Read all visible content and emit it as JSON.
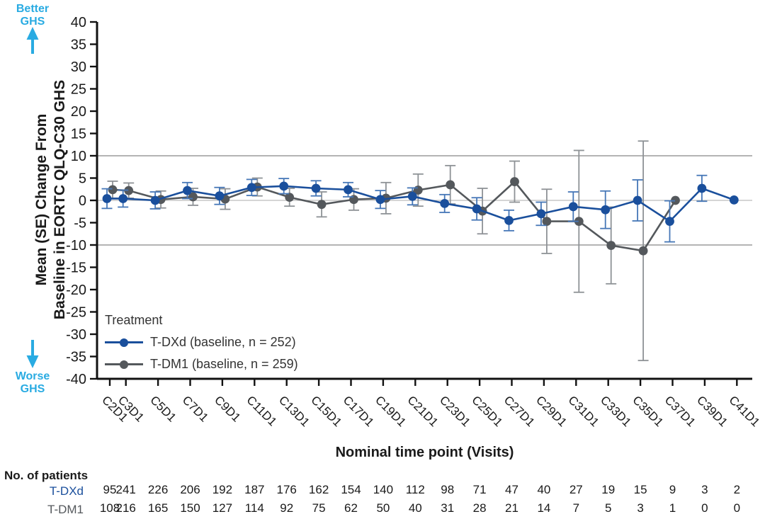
{
  "chart_data": {
    "type": "line",
    "title": "",
    "xlabel": "Nominal time point (Visits)",
    "ylabel": "Mean (SE) Change From Baseline in EORTC QLQ-C30 GHS",
    "ylabel_lines": [
      "Mean (SE) Change From",
      "Baseline in EORTC QLQ-C30 GHS"
    ],
    "ylim": [
      -40,
      40
    ],
    "ytick_step": 5,
    "reference_lines": [
      10,
      0,
      -10
    ],
    "grid": "horizontal reference lines at +10, 0, -10 only",
    "legend": {
      "title": "Treatment",
      "position": "inside lower-left"
    },
    "categories": [
      "C2D1",
      "C3D1",
      "C5D1",
      "C7D1",
      "C9D1",
      "C11D1",
      "C13D1",
      "C15D1",
      "C17D1",
      "C19D1",
      "C21D1",
      "C23D1",
      "C25D1",
      "C27D1",
      "C29D1",
      "C31D1",
      "C33D1",
      "C35D1",
      "C37D1",
      "C39D1",
      "C41D1"
    ],
    "cycles": [
      2,
      3,
      5,
      7,
      9,
      11,
      13,
      15,
      17,
      19,
      21,
      23,
      25,
      27,
      29,
      31,
      33,
      35,
      37,
      39,
      41
    ],
    "annotations": {
      "better_lines": [
        "Better",
        "GHS"
      ],
      "worse_lines": [
        "Worse",
        "GHS"
      ],
      "color": "#29ABE2"
    },
    "series": [
      {
        "name": "T-DXd",
        "label": "T-DXd (baseline, n = 252)",
        "color": "#1A4F9C",
        "error_color": "#4677B7",
        "means": [
          0.4,
          0.4,
          0.0,
          2.2,
          1.0,
          2.9,
          3.2,
          2.7,
          2.4,
          0.2,
          0.9,
          -0.7,
          -1.9,
          -4.5,
          -3.0,
          -1.4,
          -2.1,
          0.0,
          -4.7,
          2.7,
          0.1
        ],
        "se": [
          2.2,
          1.9,
          1.9,
          1.8,
          1.9,
          1.8,
          1.7,
          1.7,
          1.6,
          2.0,
          1.9,
          2.0,
          2.5,
          2.3,
          2.6,
          3.3,
          4.2,
          4.6,
          4.6,
          2.9,
          null
        ]
      },
      {
        "name": "T-DM1",
        "label": "T-DM1 (baseline, n = 259)",
        "color": "#54585C",
        "error_color": "#8E9296",
        "means": [
          2.4,
          2.2,
          0.2,
          0.8,
          0.3,
          3.0,
          0.7,
          -0.9,
          0.2,
          0.5,
          2.3,
          3.5,
          -2.4,
          4.2,
          -4.7,
          -4.7,
          -10.1,
          -11.3,
          0.0,
          null,
          null
        ],
        "se": [
          1.9,
          1.7,
          1.9,
          1.9,
          2.3,
          2.0,
          2.0,
          2.8,
          2.4,
          3.5,
          3.6,
          4.3,
          5.1,
          4.6,
          7.2,
          15.9,
          8.6,
          24.6,
          null,
          null,
          null
        ]
      }
    ]
  },
  "patients_table": {
    "header": "No. of patients",
    "rows": [
      {
        "label": "T-DXd",
        "values": [
          95,
          241,
          226,
          206,
          192,
          187,
          176,
          162,
          154,
          140,
          112,
          98,
          71,
          47,
          40,
          27,
          19,
          15,
          9,
          3,
          2
        ]
      },
      {
        "label": "T-DM1",
        "values": [
          108,
          216,
          165,
          150,
          127,
          114,
          92,
          75,
          62,
          50,
          40,
          31,
          28,
          21,
          14,
          7,
          5,
          3,
          1,
          0,
          0
        ]
      }
    ]
  }
}
